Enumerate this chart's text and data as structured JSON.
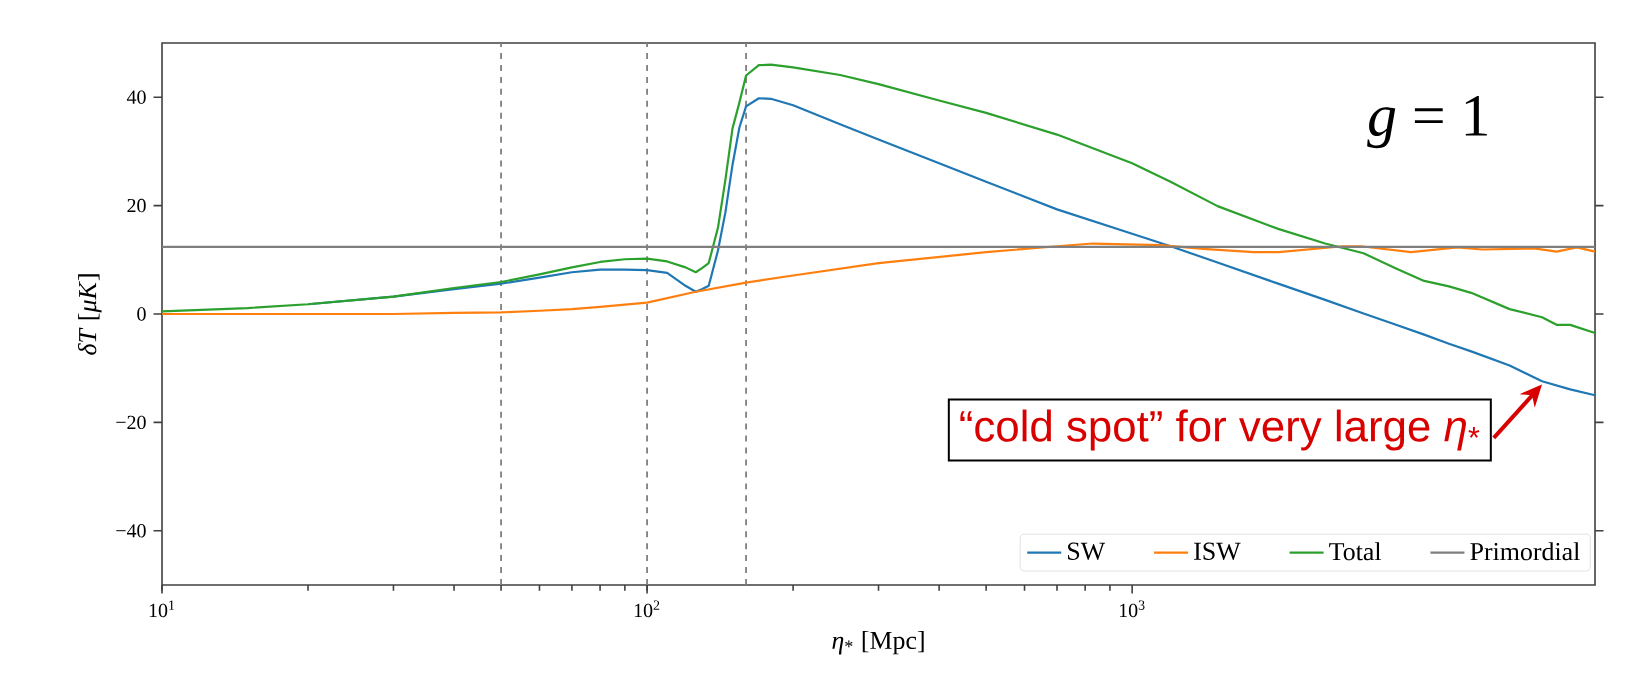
{
  "chart_data": {
    "type": "line",
    "log": "x",
    "xlabel": "*η*$_{*}$ [Mpc]",
    "ylabel": "*δT* [*μK*]",
    "xlim": [
      10,
      9000
    ],
    "ylim": [
      -50,
      50
    ],
    "xticks": [
      {
        "value": 10,
        "label": "10$^{1}$"
      },
      {
        "value": 100,
        "label": "10$^{2}$"
      },
      {
        "value": 1000,
        "label": "10$^{3}$"
      }
    ],
    "yticks": [
      {
        "value": -40,
        "label": "−40"
      },
      {
        "value": -20,
        "label": "−20"
      },
      {
        "value": 0,
        "label": "0"
      },
      {
        "value": 20,
        "label": "20"
      },
      {
        "value": 40,
        "label": "40"
      }
    ],
    "grid": false,
    "legend": "bottom right",
    "ref_lines": [
      {
        "axis": "x",
        "value": 50,
        "color": "#7f7f7f",
        "line_style": "dashed"
      },
      {
        "axis": "x",
        "value": 100,
        "color": "#7f7f7f",
        "line_style": "dashed"
      },
      {
        "axis": "x",
        "value": 160,
        "color": "#7f7f7f",
        "line_style": "dashed"
      }
    ],
    "annotations": [
      "*g* = 1",
      {
        "text": "“cold spot” for very large *η*$_{*}$",
        "x": 7000,
        "y": -13
      }
    ],
    "series": [
      {
        "name": "SW",
        "color": "#1f77b4",
        "x": [
          20,
          30,
          40,
          50,
          60,
          70,
          80,
          90,
          100,
          110,
          120,
          126,
          130,
          134,
          140,
          145,
          150,
          155,
          160,
          170,
          180,
          200,
          250,
          300,
          400,
          500,
          700,
          1000,
          1200,
          1500,
          2000,
          2500,
          3000,
          3500,
          4000,
          4500,
          5000,
          6000,
          7000,
          8000,
          9000
        ],
        "values": [
          1.8,
          3.2,
          4.6,
          5.6,
          6.7,
          7.7,
          8.2,
          8.2,
          8.1,
          7.6,
          5.2,
          4.1,
          4.6,
          5.2,
          11.7,
          18.7,
          27.5,
          34.4,
          38.3,
          39.8,
          39.7,
          38.5,
          35.0,
          32.2,
          27.8,
          24.4,
          19.3,
          14.8,
          12.5,
          9.5,
          5.6,
          2.6,
          0.1,
          -2.0,
          -3.8,
          -5.5,
          -6.9,
          -9.5,
          -12.4,
          -13.9,
          -15.0
        ]
      },
      {
        "name": "ISW",
        "color": "#ff7f0e",
        "x": [
          10,
          20,
          30,
          40,
          50,
          60,
          70,
          80,
          100,
          126,
          160,
          200,
          300,
          500,
          700,
          830,
          1146,
          1400,
          1780,
          2005,
          2720,
          2960,
          3760,
          4680,
          5270,
          6740,
          7500,
          8260,
          9000
        ],
        "values": [
          0,
          0,
          0,
          0.2,
          0.3,
          0.6,
          0.9,
          1.3,
          2.1,
          4.1,
          5.8,
          7.1,
          9.4,
          11.4,
          12.5,
          13.0,
          12.7,
          12.0,
          11.4,
          11.4,
          12.5,
          12.5,
          11.4,
          12.3,
          11.9,
          12.1,
          11.5,
          12.3,
          11.5
        ]
      },
      {
        "name": "Total",
        "color": "#2ca02c",
        "x": [
          10,
          15,
          20,
          30,
          40,
          50,
          60,
          70,
          80,
          90,
          100,
          110,
          120,
          126,
          130,
          134,
          140,
          145,
          150,
          155,
          160,
          170,
          180,
          200,
          250,
          300,
          400,
          500,
          700,
          1000,
          1200,
          1500,
          2000,
          2500,
          3000,
          3500,
          4000,
          4500,
          5000,
          6000,
          7000,
          7500,
          8000,
          9000
        ],
        "values": [
          0.5,
          1.1,
          1.8,
          3.2,
          4.8,
          5.9,
          7.3,
          8.6,
          9.6,
          10.1,
          10.2,
          9.7,
          8.6,
          7.7,
          8.5,
          9.4,
          15.9,
          24.7,
          34.2,
          39.0,
          44.0,
          45.9,
          46.0,
          45.5,
          44.1,
          42.4,
          39.4,
          37.1,
          33.1,
          27.8,
          24.4,
          19.9,
          15.7,
          13.0,
          11.2,
          8.4,
          6.1,
          5.1,
          3.9,
          0.9,
          -0.6,
          -2.0,
          -2.0,
          -3.5
        ]
      },
      {
        "name": "Primordial",
        "color": "#7f7f7f",
        "x": [
          10,
          9000
        ],
        "values": [
          12.4,
          12.4
        ]
      }
    ]
  }
}
